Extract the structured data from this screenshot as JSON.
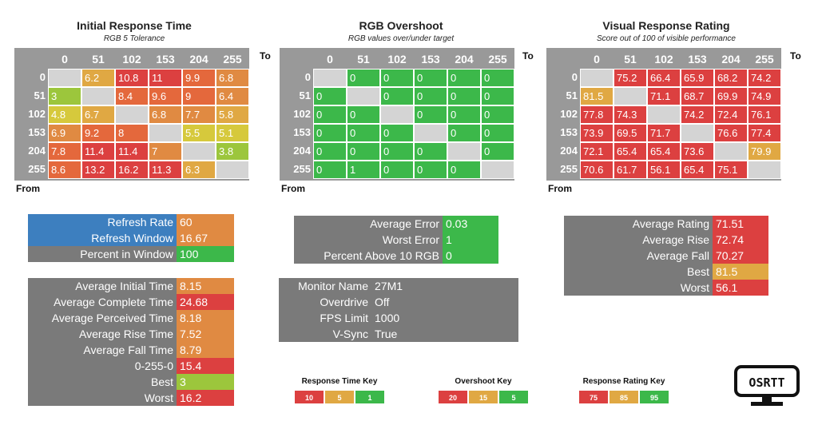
{
  "colors": {
    "grey": "#999999",
    "diag": "#d4d4d4",
    "red": "#dc4040",
    "redorange": "#e4683c",
    "orange": "#e08a42",
    "amber": "#e0a843",
    "yellow": "#d6c93c",
    "lime": "#9cc63c",
    "green": "#3cb84a",
    "blue": "#3d7fbf",
    "darkgrey": "#7a7a7a"
  },
  "axis_labels": {
    "to": "To",
    "from": "From"
  },
  "headers": [
    "0",
    "51",
    "102",
    "153",
    "204",
    "255"
  ],
  "panels": [
    {
      "title": "Initial Response Time",
      "subtitle": "RGB 5 Tolerance",
      "rows": [
        [
          "",
          "6.2",
          "10.8",
          "11",
          "9.9",
          "6.8"
        ],
        [
          "3",
          "",
          "8.4",
          "9.6",
          "9",
          "6.4"
        ],
        [
          "4.8",
          "6.7",
          "",
          "6.8",
          "7.7",
          "5.8"
        ],
        [
          "6.9",
          "9.2",
          "8",
          "",
          "5.5",
          "5.1"
        ],
        [
          "7.8",
          "11.4",
          "11.4",
          "7",
          "",
          "3.8"
        ],
        [
          "8.6",
          "13.2",
          "16.2",
          "11.3",
          "6.3",
          ""
        ]
      ],
      "colors": [
        [
          "diag",
          "amber",
          "red",
          "red",
          "redorange",
          "orange"
        ],
        [
          "lime",
          "diag",
          "redorange",
          "redorange",
          "redorange",
          "orange"
        ],
        [
          "yellow",
          "amber",
          "diag",
          "orange",
          "orange",
          "amber"
        ],
        [
          "orange",
          "redorange",
          "redorange",
          "diag",
          "yellow",
          "yellow"
        ],
        [
          "redorange",
          "red",
          "red",
          "orange",
          "diag",
          "lime"
        ],
        [
          "redorange",
          "red",
          "red",
          "red",
          "amber",
          "diag"
        ]
      ]
    },
    {
      "title": "RGB Overshoot",
      "subtitle": "RGB values over/under target",
      "rows": [
        [
          "",
          "0",
          "0",
          "0",
          "0",
          "0"
        ],
        [
          "0",
          "",
          "0",
          "0",
          "0",
          "0"
        ],
        [
          "0",
          "0",
          "",
          "0",
          "0",
          "0"
        ],
        [
          "0",
          "0",
          "0",
          "",
          "0",
          "0"
        ],
        [
          "0",
          "0",
          "0",
          "0",
          "",
          "0"
        ],
        [
          "0",
          "1",
          "0",
          "0",
          "0",
          ""
        ]
      ],
      "colors": [
        [
          "diag",
          "green",
          "green",
          "green",
          "green",
          "green"
        ],
        [
          "green",
          "diag",
          "green",
          "green",
          "green",
          "green"
        ],
        [
          "green",
          "green",
          "diag",
          "green",
          "green",
          "green"
        ],
        [
          "green",
          "green",
          "green",
          "diag",
          "green",
          "green"
        ],
        [
          "green",
          "green",
          "green",
          "green",
          "diag",
          "green"
        ],
        [
          "green",
          "green",
          "green",
          "green",
          "green",
          "diag"
        ]
      ]
    },
    {
      "title": "Visual Response Rating",
      "subtitle": "Score out of 100 of visible performance",
      "rows": [
        [
          "",
          "75.2",
          "66.4",
          "65.9",
          "68.2",
          "74.2"
        ],
        [
          "81.5",
          "",
          "71.1",
          "68.7",
          "69.9",
          "74.9"
        ],
        [
          "77.8",
          "74.3",
          "",
          "74.2",
          "72.4",
          "76.1"
        ],
        [
          "73.9",
          "69.5",
          "71.7",
          "",
          "76.6",
          "77.4"
        ],
        [
          "72.1",
          "65.4",
          "65.4",
          "73.6",
          "",
          "79.9"
        ],
        [
          "70.6",
          "61.7",
          "56.1",
          "65.4",
          "75.1",
          ""
        ]
      ],
      "colors": [
        [
          "diag",
          "red",
          "red",
          "red",
          "red",
          "red"
        ],
        [
          "amber",
          "diag",
          "red",
          "red",
          "red",
          "red"
        ],
        [
          "red",
          "red",
          "diag",
          "red",
          "red",
          "red"
        ],
        [
          "red",
          "red",
          "red",
          "diag",
          "red",
          "red"
        ],
        [
          "red",
          "red",
          "red",
          "red",
          "diag",
          "amber"
        ],
        [
          "red",
          "red",
          "red",
          "red",
          "red",
          "diag"
        ]
      ]
    }
  ],
  "refresh_stats": [
    {
      "label": "Refresh Rate",
      "value": "60",
      "lc": "blue",
      "vc": "orange"
    },
    {
      "label": "Refresh Window",
      "value": "16.67",
      "lc": "blue",
      "vc": "orange"
    },
    {
      "label": "Percent in Window",
      "value": "100",
      "lc": "darkgrey",
      "vc": "green"
    }
  ],
  "time_stats": [
    {
      "label": "Average Initial Time",
      "value": "8.15",
      "vc": "orange"
    },
    {
      "label": "Average Complete Time",
      "value": "24.68",
      "vc": "red"
    },
    {
      "label": "Average Perceived Time",
      "value": "8.18",
      "vc": "orange"
    },
    {
      "label": "Average Rise Time",
      "value": "7.52",
      "vc": "orange"
    },
    {
      "label": "Average Fall Time",
      "value": "8.79",
      "vc": "orange"
    },
    {
      "label": "0-255-0",
      "value": "15.4",
      "vc": "red"
    },
    {
      "label": "Best",
      "value": "3",
      "vc": "lime"
    },
    {
      "label": "Worst",
      "value": "16.2",
      "vc": "red"
    }
  ],
  "error_stats": [
    {
      "label": "Average Error",
      "value": "0.03",
      "vc": "green"
    },
    {
      "label": "Worst Error",
      "value": "1",
      "vc": "green"
    },
    {
      "label": "Percent Above 10 RGB",
      "value": "0",
      "vc": "green"
    }
  ],
  "monitor_stats": [
    {
      "label": "Monitor Name",
      "value": "27M1"
    },
    {
      "label": "Overdrive",
      "value": "Off"
    },
    {
      "label": "FPS Limit",
      "value": "1000"
    },
    {
      "label": "V-Sync",
      "value": "True"
    }
  ],
  "rating_stats": [
    {
      "label": "Average Rating",
      "value": "71.51",
      "vc": "red"
    },
    {
      "label": "Average Rise",
      "value": "72.74",
      "vc": "red"
    },
    {
      "label": "Average Fall",
      "value": "70.27",
      "vc": "red"
    },
    {
      "label": "Best",
      "value": "81.5",
      "vc": "amber"
    },
    {
      "label": "Worst",
      "value": "56.1",
      "vc": "red"
    }
  ],
  "keys": [
    {
      "title": "Response Time Key",
      "items": [
        {
          "v": "10",
          "c": "red"
        },
        {
          "v": "5",
          "c": "amber"
        },
        {
          "v": "1",
          "c": "green"
        }
      ]
    },
    {
      "title": "Overshoot Key",
      "items": [
        {
          "v": "20",
          "c": "red"
        },
        {
          "v": "15",
          "c": "amber"
        },
        {
          "v": "5",
          "c": "green"
        }
      ]
    },
    {
      "title": "Response Rating Key",
      "items": [
        {
          "v": "75",
          "c": "red"
        },
        {
          "v": "85",
          "c": "amber"
        },
        {
          "v": "95",
          "c": "green"
        }
      ]
    }
  ],
  "logo": {
    "text": "OSRTT"
  }
}
